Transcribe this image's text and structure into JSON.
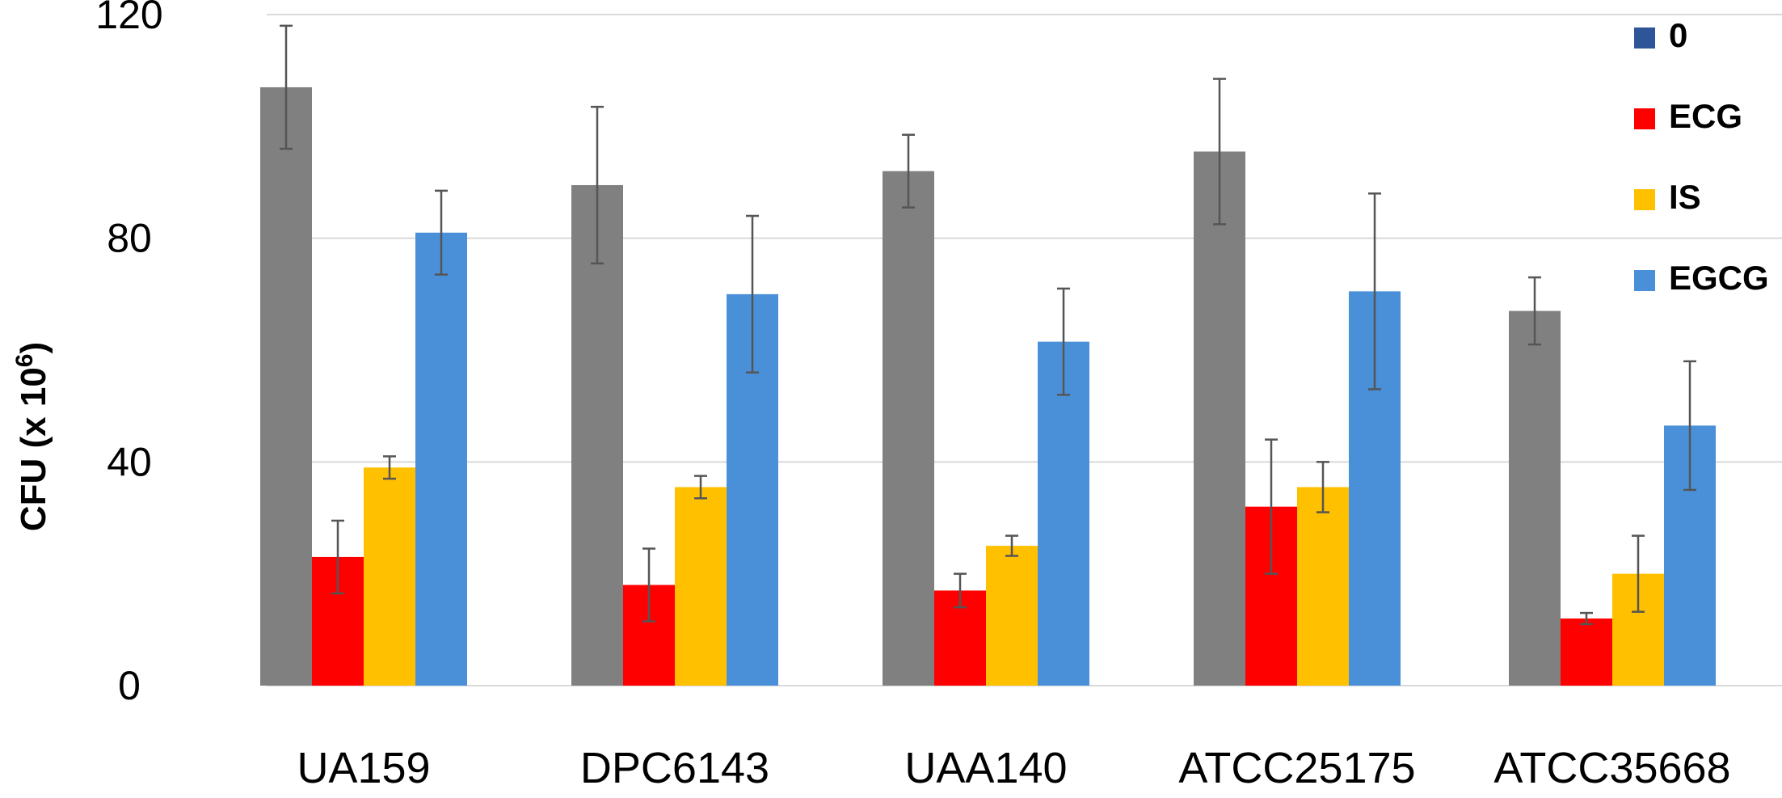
{
  "chart_data": {
    "type": "bar",
    "ylabel": "CFU (x 10",
    "ylabel_sup": "6",
    "ylabel_close": ")",
    "xlabel": "",
    "ylim": [
      0,
      120
    ],
    "yticks": [
      "0",
      "40",
      "80",
      "120"
    ],
    "ytick_values": [
      0,
      40,
      80,
      120
    ],
    "grid": true,
    "legend_position": "top-right",
    "categories": [
      "UA159",
      "DPC6143",
      "UAA140",
      "ATCC25175",
      "ATCC35668"
    ],
    "legend": [
      {
        "name": "0",
        "color": "#2E5597"
      },
      {
        "name": "ECG",
        "color": "#FF0000"
      },
      {
        "name": "IS",
        "color": "#FFC000"
      },
      {
        "name": "EGCG",
        "color": "#4A90D9"
      }
    ],
    "series": [
      {
        "color": "#808080",
        "values": [
          107,
          89.5,
          92,
          95.5,
          67
        ],
        "errors": [
          11,
          14,
          6.5,
          13,
          6
        ]
      },
      {
        "color": "#FF0000",
        "values": [
          23,
          18,
          17,
          32,
          12
        ],
        "errors": [
          6.5,
          6.5,
          3,
          12,
          1
        ]
      },
      {
        "color": "#FFC000",
        "values": [
          39,
          35.5,
          25,
          35.5,
          20
        ],
        "errors": [
          2,
          2,
          1.8,
          4.5,
          6.8
        ]
      },
      {
        "color": "#4A90D9",
        "values": [
          81,
          70,
          61.5,
          70.5,
          46.5
        ],
        "errors": [
          7.5,
          14,
          9.5,
          17.5,
          11.5
        ]
      }
    ]
  }
}
